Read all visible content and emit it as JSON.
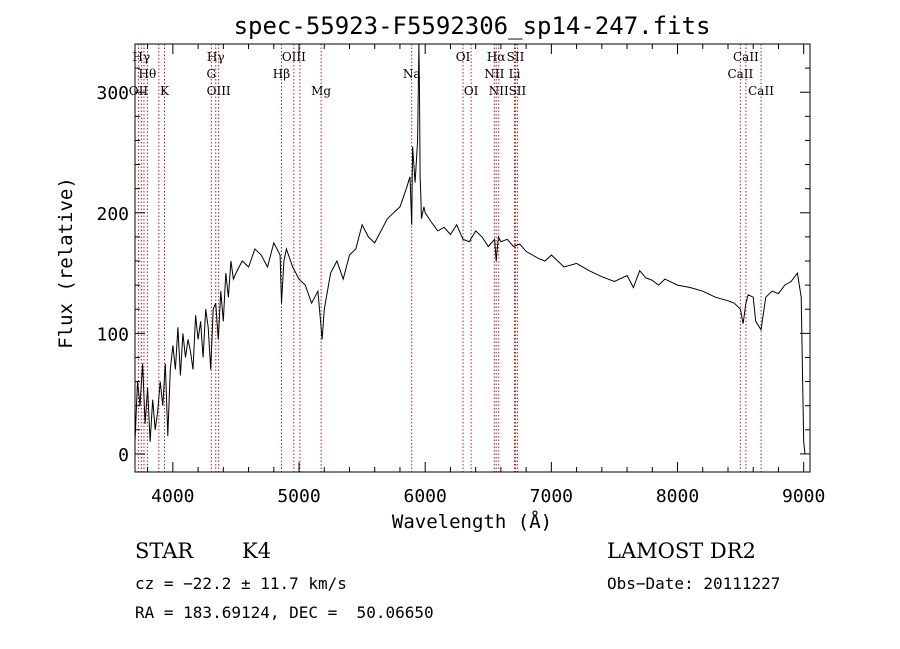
{
  "chart_data": {
    "type": "line",
    "title": "spec-55923-F5592306_sp14-247.fits",
    "xlabel": "Wavelength (Å)",
    "ylabel": "Flux (relative)",
    "xlim": [
      3700,
      9050
    ],
    "ylim": [
      -15,
      340
    ],
    "x_ticks": [
      4000,
      5000,
      6000,
      7000,
      8000,
      9000
    ],
    "y_ticks": [
      0,
      100,
      200,
      300
    ],
    "grid": false,
    "series": [
      {
        "color": "#000000",
        "x": [
          3700,
          3720,
          3740,
          3760,
          3780,
          3800,
          3820,
          3840,
          3860,
          3880,
          3900,
          3920,
          3940,
          3960,
          3980,
          4000,
          4020,
          4040,
          4060,
          4080,
          4100,
          4120,
          4140,
          4160,
          4180,
          4200,
          4220,
          4240,
          4260,
          4280,
          4300,
          4320,
          4340,
          4360,
          4380,
          4400,
          4420,
          4440,
          4460,
          4480,
          4500,
          4550,
          4600,
          4650,
          4700,
          4750,
          4800,
          4850,
          4861,
          4880,
          4900,
          4950,
          5000,
          5050,
          5100,
          5150,
          5175,
          5183,
          5200,
          5250,
          5300,
          5350,
          5400,
          5450,
          5500,
          5550,
          5600,
          5650,
          5700,
          5750,
          5800,
          5850,
          5880,
          5893,
          5900,
          5920,
          5940,
          5950,
          5955,
          5960,
          5965,
          5970,
          5990,
          6000,
          6050,
          6100,
          6150,
          6200,
          6250,
          6300,
          6350,
          6400,
          6450,
          6500,
          6550,
          6563,
          6580,
          6600,
          6650,
          6700,
          6750,
          6800,
          6850,
          6900,
          6950,
          7000,
          7100,
          7200,
          7300,
          7400,
          7500,
          7600,
          7650,
          7700,
          7750,
          7800,
          7850,
          7900,
          8000,
          8100,
          8200,
          8300,
          8400,
          8450,
          8498,
          8520,
          8542,
          8560,
          8600,
          8620,
          8662,
          8700,
          8750,
          8800,
          8850,
          8900,
          8950,
          8980,
          9000,
          9010
        ],
        "y": [
          10,
          60,
          40,
          75,
          25,
          55,
          10,
          45,
          20,
          35,
          60,
          40,
          75,
          15,
          70,
          90,
          70,
          105,
          65,
          100,
          80,
          95,
          85,
          70,
          115,
          95,
          110,
          80,
          120,
          105,
          70,
          120,
          125,
          95,
          135,
          110,
          150,
          130,
          160,
          145,
          150,
          160,
          155,
          170,
          165,
          155,
          175,
          165,
          125,
          160,
          170,
          155,
          145,
          140,
          125,
          135,
          105,
          95,
          120,
          150,
          160,
          145,
          165,
          170,
          190,
          180,
          175,
          185,
          195,
          200,
          205,
          220,
          230,
          190,
          255,
          225,
          260,
          340,
          300,
          230,
          215,
          195,
          205,
          200,
          192,
          185,
          188,
          182,
          190,
          178,
          176,
          185,
          180,
          172,
          178,
          160,
          180,
          176,
          178,
          172,
          174,
          168,
          165,
          162,
          160,
          165,
          155,
          158,
          152,
          147,
          143,
          148,
          138,
          152,
          146,
          144,
          140,
          145,
          140,
          138,
          135,
          130,
          127,
          125,
          120,
          108,
          125,
          132,
          130,
          110,
          103,
          130,
          135,
          133,
          140,
          143,
          150,
          130,
          10,
          0
        ]
      }
    ],
    "spectral_lines": [
      {
        "label": "Hγ",
        "x": 3750,
        "row": 0
      },
      {
        "label": "Hθ",
        "x": 3798,
        "row": 1
      },
      {
        "label": "OII",
        "x": 3727,
        "row": 2
      },
      {
        "label": "K",
        "x": 3934,
        "row": 2
      },
      {
        "label": "Hγ",
        "x": 4340,
        "row": 0
      },
      {
        "label": "G",
        "x": 4305,
        "row": 1
      },
      {
        "label": "OIII",
        "x": 4363,
        "row": 2
      },
      {
        "label": "OIII",
        "x": 4959,
        "row": 0
      },
      {
        "label": "Hβ",
        "x": 4861,
        "row": 1
      },
      {
        "label": "Mg",
        "x": 5175,
        "row": 2
      },
      {
        "label": "Na",
        "x": 5893,
        "row": 1
      },
      {
        "label": "OI",
        "x": 6300,
        "row": 0
      },
      {
        "label": "OI",
        "x": 6364,
        "row": 2
      },
      {
        "label": "Hα",
        "x": 6563,
        "row": 0
      },
      {
        "label": "SII",
        "x": 6716,
        "row": 0
      },
      {
        "label": "NII",
        "x": 6548,
        "row": 1
      },
      {
        "label": "Li",
        "x": 6708,
        "row": 1
      },
      {
        "label": "NII",
        "x": 6583,
        "row": 2
      },
      {
        "label": "SII",
        "x": 6731,
        "row": 2
      },
      {
        "label": "CaII",
        "x": 8542,
        "row": 0
      },
      {
        "label": "CaII",
        "x": 8498,
        "row": 1
      },
      {
        "label": "CaII",
        "x": 8662,
        "row": 2
      }
    ],
    "line_markers": [
      3727,
      3750,
      3771,
      3798,
      3889,
      3934,
      4305,
      4340,
      4363,
      4861,
      4959,
      5007,
      5175,
      5893,
      6300,
      6364,
      6548,
      6563,
      6583,
      6708,
      6716,
      6731,
      8498,
      8542,
      8662
    ]
  },
  "info": {
    "object_type": "STAR",
    "subclass": "K4",
    "redshift_line": "cz = −22.2 ± 11.7 km/s",
    "coords_line": "RA = 183.69124, DEC =  50.06650",
    "survey": "LAMOST DR2",
    "obs_date_line": "Obs−Date: 20111227"
  }
}
